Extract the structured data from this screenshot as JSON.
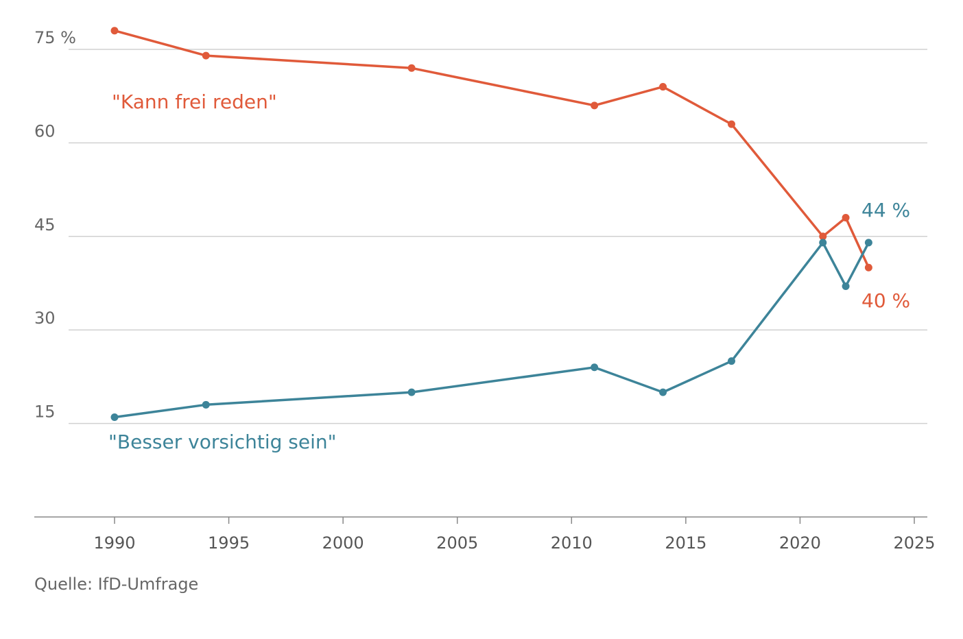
{
  "chart_data": {
    "type": "line",
    "title": "",
    "xlabel": "",
    "ylabel": "",
    "xlim": [
      1987,
      2025
    ],
    "ylim": [
      0,
      80
    ],
    "x_ticks": [
      "1990",
      "1995",
      "2000",
      "2005",
      "2010",
      "2015",
      "2020",
      "2025"
    ],
    "y_ticks": [
      "75 %",
      "60",
      "45",
      "30",
      "15"
    ],
    "y_tick_values": [
      75,
      60,
      45,
      30,
      15
    ],
    "grid": true,
    "series": [
      {
        "name": "\"Kann frei reden\"",
        "color": "#e05a3a",
        "x": [
          1990,
          1994,
          2003,
          2011,
          2014,
          2017,
          2021,
          2022,
          2023
        ],
        "y": [
          78,
          74,
          72,
          66,
          69,
          63,
          45,
          48,
          40
        ],
        "end_label": "40 %"
      },
      {
        "name": "\"Besser vorsichtig sein\"",
        "color": "#3d8499",
        "x": [
          1990,
          1994,
          2003,
          2011,
          2014,
          2017,
          2021,
          2022,
          2023
        ],
        "y": [
          16,
          18,
          20,
          24,
          20,
          25,
          44,
          37,
          44
        ],
        "end_label": "44 %"
      }
    ]
  },
  "source": "Quelle: IfD-Umfrage"
}
